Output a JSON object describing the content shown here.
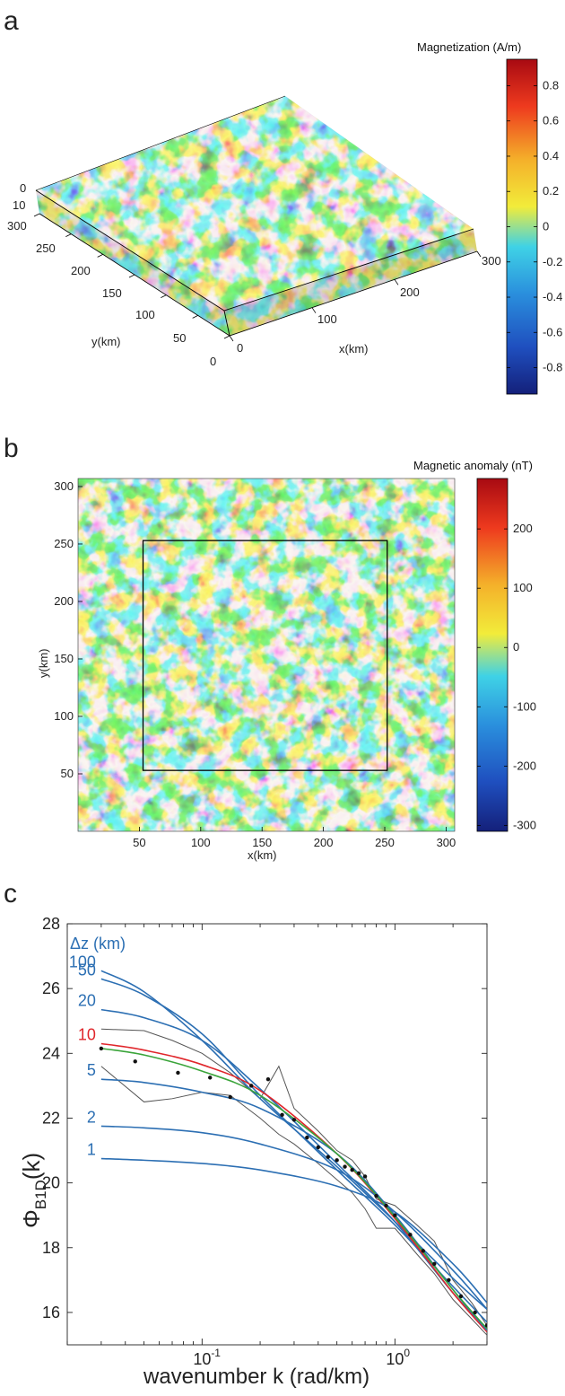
{
  "panels": {
    "a": "a",
    "b": "b",
    "c": "c"
  },
  "chart_data": [
    {
      "type": "heatmap",
      "title": "",
      "colorbar_title": "Magnetization (A/m)",
      "colorbar_ticks": [
        "0.8",
        "0.6",
        "0.4",
        "0.2",
        "0",
        "-0.2",
        "-0.4",
        "-0.6",
        "-0.8"
      ],
      "colorbar_range": [
        -0.95,
        0.95
      ],
      "x_axis_label": "x(km)",
      "y_axis_label": "y(km)",
      "x_ticks": [
        "0",
        "100",
        "200",
        "300"
      ],
      "y_ticks": [
        "0",
        "50",
        "100",
        "150",
        "200",
        "250",
        "300"
      ],
      "z_ticks": [
        "0",
        "10"
      ],
      "colormap": [
        "#14207a",
        "#1f4fbf",
        "#2a8fdd",
        "#3fd2e6",
        "#f2ec3a",
        "#f4b02a",
        "#ee3a1e",
        "#a80a12"
      ]
    },
    {
      "type": "heatmap",
      "title": "",
      "colorbar_title": "Magnetic anomaly (nT)",
      "colorbar_ticks": [
        "200",
        "100",
        "0",
        "-100",
        "-200",
        "-300"
      ],
      "colorbar_range": [
        -310,
        285
      ],
      "xlabel": "x(km)",
      "ylabel": "y(km)",
      "x_ticks": [
        "50",
        "100",
        "150",
        "200",
        "250",
        "300"
      ],
      "y_ticks": [
        "50",
        "100",
        "150",
        "200",
        "250",
        "300"
      ],
      "xlim": [
        0,
        307
      ],
      "ylim": [
        0,
        307
      ],
      "box_km": [
        53,
        53,
        252,
        253
      ]
    },
    {
      "type": "line",
      "xlabel": "wavenumber k (rad/km)",
      "ylabel": "Φ",
      "ylabel_sub": "B1D",
      "ylabel_suffix": "(k)",
      "xscale": "log",
      "xlim": [
        0.02,
        3.0
      ],
      "ylim": [
        15,
        28
      ],
      "x_ticks": [
        {
          "base": "10",
          "exp": "-1",
          "value": 0.1
        },
        {
          "base": "10",
          "exp": "0",
          "value": 1.0
        }
      ],
      "y_ticks": [
        16,
        18,
        20,
        22,
        24,
        26,
        28
      ],
      "legend_title": "Δz (km)",
      "model_curves": [
        {
          "name": "100",
          "color": "#2c6fb3",
          "x": [
            0.03,
            0.05,
            0.1,
            0.2,
            0.5,
            1,
            2,
            3
          ],
          "y": [
            26.55,
            25.9,
            24.4,
            22.6,
            20.5,
            18.8,
            17.05,
            16.1
          ]
        },
        {
          "name": "50",
          "color": "#2c6fb3",
          "x": [
            0.03,
            0.05,
            0.1,
            0.2,
            0.5,
            1,
            2,
            3
          ],
          "y": [
            26.3,
            25.8,
            24.6,
            22.7,
            20.4,
            18.7,
            16.8,
            15.7
          ]
        },
        {
          "name": "20",
          "color": "#2c6fb3",
          "x": [
            0.03,
            0.05,
            0.1,
            0.2,
            0.5,
            1,
            2,
            3
          ],
          "y": [
            25.35,
            25.1,
            24.4,
            22.9,
            20.6,
            18.8,
            16.6,
            15.5
          ]
        },
        {
          "name": "10",
          "color": "#e0262b",
          "x": [
            0.03,
            0.05,
            0.1,
            0.2,
            0.5,
            1,
            2,
            3
          ],
          "y": [
            24.3,
            24.1,
            23.65,
            22.85,
            20.9,
            18.9,
            16.6,
            15.4
          ]
        },
        {
          "name": "5",
          "color": "#2c6fb3",
          "x": [
            0.03,
            0.05,
            0.1,
            0.2,
            0.5,
            1,
            2,
            3
          ],
          "y": [
            23.2,
            23.1,
            22.8,
            22.3,
            20.9,
            19.0,
            16.7,
            15.45
          ]
        },
        {
          "name": "2",
          "color": "#2c6fb3",
          "x": [
            0.03,
            0.05,
            0.1,
            0.2,
            0.5,
            1,
            2,
            3
          ],
          "y": [
            21.75,
            21.7,
            21.55,
            21.2,
            20.4,
            19.1,
            17.3,
            16.1
          ]
        },
        {
          "name": "1",
          "color": "#2c6fb3",
          "x": [
            0.03,
            0.05,
            0.1,
            0.2,
            0.5,
            1,
            2,
            3
          ],
          "y": [
            20.75,
            20.7,
            20.6,
            20.4,
            19.9,
            19.1,
            17.5,
            16.3
          ]
        }
      ],
      "fit_curve": {
        "color": "#3aa43a",
        "x": [
          0.03,
          0.05,
          0.1,
          0.2,
          0.5,
          1,
          2,
          3
        ],
        "y": [
          24.15,
          23.95,
          23.45,
          22.7,
          20.9,
          18.95,
          16.7,
          15.5
        ]
      },
      "gray_bounds": [
        {
          "x": [
            0.03,
            0.05,
            0.07,
            0.1,
            0.14,
            0.2,
            0.25,
            0.3,
            0.4,
            0.5,
            0.6,
            0.7,
            0.8,
            1.0,
            1.3,
            1.6,
            2.0,
            2.5,
            3.0
          ],
          "y": [
            24.75,
            24.7,
            24.4,
            24.0,
            23.4,
            22.6,
            23.6,
            22.3,
            21.6,
            21.0,
            20.7,
            20.2,
            19.5,
            19.3,
            18.7,
            18.2,
            17.0,
            16.3,
            15.6
          ]
        },
        {
          "x": [
            0.03,
            0.05,
            0.07,
            0.1,
            0.14,
            0.2,
            0.25,
            0.3,
            0.4,
            0.5,
            0.6,
            0.7,
            0.8,
            1.0,
            1.3,
            1.6,
            2.0,
            2.5,
            3.0
          ],
          "y": [
            23.6,
            22.5,
            22.6,
            22.8,
            22.7,
            22.0,
            21.5,
            21.2,
            20.6,
            20.1,
            19.7,
            19.2,
            18.6,
            18.6,
            17.8,
            17.2,
            16.4,
            15.8,
            15.3
          ]
        }
      ],
      "observed_points": {
        "x": [
          0.03,
          0.045,
          0.075,
          0.11,
          0.14,
          0.18,
          0.22,
          0.26,
          0.3,
          0.35,
          0.4,
          0.45,
          0.5,
          0.55,
          0.6,
          0.65,
          0.7,
          0.8,
          0.9,
          1.0,
          1.2,
          1.4,
          1.6,
          1.9,
          2.2,
          2.6,
          3.0
        ],
        "y": [
          24.15,
          23.75,
          23.4,
          23.25,
          22.65,
          23.0,
          23.2,
          22.1,
          21.95,
          21.4,
          21.1,
          20.8,
          20.7,
          20.5,
          20.4,
          20.3,
          20.2,
          19.6,
          19.3,
          19.0,
          18.4,
          17.9,
          17.5,
          17.0,
          16.5,
          16.0,
          15.6
        ]
      }
    }
  ]
}
